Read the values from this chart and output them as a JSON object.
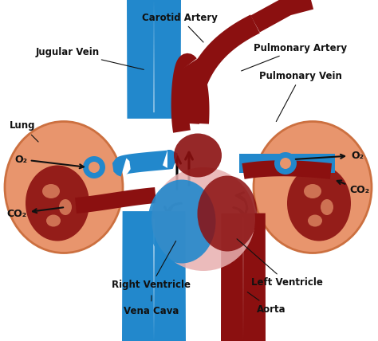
{
  "background_color": "#ffffff",
  "labels": {
    "jugular_vein": "Jugular Vein",
    "carotid_artery": "Carotid Artery",
    "pulmonary_artery": "Pulmonary Artery",
    "pulmonary_vein": "Pulmonary Vein",
    "lung": "Lung",
    "o2_left": "O₂",
    "co2_left": "CO₂",
    "o2_right": "O₂",
    "co2_right": "CO₂",
    "right_ventricle": "Right Ventricle",
    "left_ventricle": "Left Ventricle",
    "vena_cava": "Vena Cava",
    "aorta": "Aorta"
  },
  "colors": {
    "blue_vessel": "#2288cc",
    "blue_dark": "#1a6eaa",
    "red_vessel": "#8b1010",
    "red_bright": "#aa1515",
    "lung_fill": "#e8956d",
    "lung_edge": "#cc7040",
    "heart_pink": "#e8b0b0",
    "heart_blue": "#5599cc",
    "arrow_black": "#111111",
    "text_color": "#111111",
    "white": "#ffffff"
  },
  "figsize": [
    4.74,
    4.28
  ],
  "dpi": 100
}
